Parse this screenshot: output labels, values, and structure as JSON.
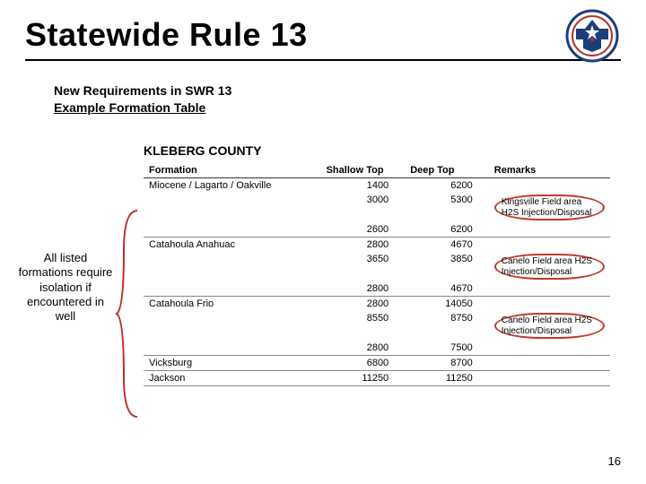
{
  "header": {
    "title": "Statewide Rule 13",
    "sub1": "New Requirements in SWR 13",
    "sub2": "Example Formation Table"
  },
  "callout": {
    "text": "All listed formations require isolation if encountered in well",
    "font_size": 13
  },
  "colors": {
    "accent_red": "#b8322a",
    "seal_blue": "#1a3e7a",
    "rule": "#000000",
    "grid": "#888888",
    "background": "#ffffff"
  },
  "table": {
    "county": "KLEBERG COUNTY",
    "columns": [
      "Formation",
      "Shallow Top",
      "Deep Top",
      "Remarks"
    ],
    "col_widths_pct": [
      38,
      18,
      18,
      26
    ],
    "font_size": 11,
    "groups": [
      {
        "formation": "Miocene / Lagarto / Oakville",
        "rows": [
          {
            "shallow": 1400,
            "deep": 6200,
            "remark": ""
          },
          {
            "shallow": 3000,
            "deep": 5300,
            "remark": "Kingsville Field area H2S Injection/Disposal"
          },
          {
            "shallow": 2600,
            "deep": 6200,
            "remark": ""
          }
        ]
      },
      {
        "formation": "Catahoula Anahuac",
        "rows": [
          {
            "shallow": 2800,
            "deep": 4670,
            "remark": ""
          },
          {
            "shallow": 3650,
            "deep": 3850,
            "remark": "Canelo Field area H2S Injection/Disposal"
          },
          {
            "shallow": 2800,
            "deep": 4670,
            "remark": ""
          }
        ]
      },
      {
        "formation": "Catahoula Frio",
        "rows": [
          {
            "shallow": 2800,
            "deep": 14050,
            "remark": ""
          },
          {
            "shallow": 8550,
            "deep": 8750,
            "remark": "Canelo Field area H2S Injection/Disposal"
          },
          {
            "shallow": 2800,
            "deep": 7500,
            "remark": ""
          }
        ]
      },
      {
        "formation": "Vicksburg",
        "rows": [
          {
            "shallow": 6800,
            "deep": 8700,
            "remark": ""
          }
        ]
      },
      {
        "formation": "Jackson",
        "rows": [
          {
            "shallow": 11250,
            "deep": 11250,
            "remark": ""
          }
        ]
      }
    ]
  },
  "footer": {
    "page": "16"
  }
}
